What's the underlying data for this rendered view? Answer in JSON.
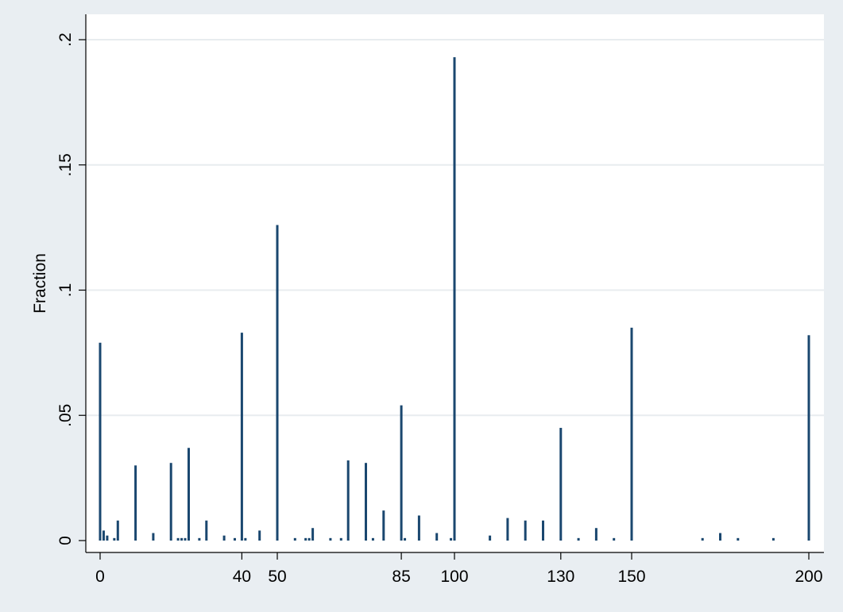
{
  "chart_data": {
    "type": "bar",
    "title": "",
    "xlabel": "",
    "ylabel": "Fraction",
    "xlim": [
      0,
      200
    ],
    "ylim": [
      0,
      0.2
    ],
    "grid": true,
    "x_ticks": [
      {
        "value": 0,
        "label": "0"
      },
      {
        "value": 40,
        "label": "40"
      },
      {
        "value": 50,
        "label": "50"
      },
      {
        "value": 85,
        "label": "85"
      },
      {
        "value": 100,
        "label": "100"
      },
      {
        "value": 130,
        "label": "130"
      },
      {
        "value": 150,
        "label": "150"
      },
      {
        "value": 200,
        "label": "200"
      }
    ],
    "y_ticks": [
      {
        "value": 0,
        "label": "0"
      },
      {
        "value": 0.05,
        "label": ".05"
      },
      {
        "value": 0.1,
        "label": ".1"
      },
      {
        "value": 0.15,
        "label": ".15"
      },
      {
        "value": 0.2,
        "label": ".2"
      }
    ],
    "x": [
      0,
      1,
      2,
      4,
      5,
      10,
      15,
      20,
      22,
      23,
      24,
      25,
      28,
      30,
      35,
      38,
      40,
      41,
      45,
      50,
      55,
      58,
      59,
      60,
      65,
      68,
      70,
      75,
      77,
      80,
      85,
      86,
      90,
      95,
      99,
      100,
      110,
      115,
      120,
      125,
      130,
      135,
      140,
      145,
      150,
      170,
      175,
      180,
      190,
      200
    ],
    "values": [
      0.079,
      0.004,
      0.002,
      0.001,
      0.008,
      0.03,
      0.003,
      0.031,
      0.001,
      0.001,
      0.001,
      0.037,
      0.001,
      0.008,
      0.002,
      0.001,
      0.083,
      0.001,
      0.004,
      0.126,
      0.001,
      0.001,
      0.001,
      0.005,
      0.001,
      0.001,
      0.032,
      0.031,
      0.001,
      0.012,
      0.054,
      0.001,
      0.01,
      0.003,
      0.001,
      0.193,
      0.002,
      0.009,
      0.008,
      0.008,
      0.045,
      0.001,
      0.005,
      0.001,
      0.085,
      0.001,
      0.003,
      0.001,
      0.001,
      0.082
    ],
    "colors": {
      "bar": "#1a476f",
      "plot_bg": "#ffffff",
      "outer_bg": "#e9eef2",
      "grid": "#e8ecef",
      "axis": "#000000"
    }
  }
}
